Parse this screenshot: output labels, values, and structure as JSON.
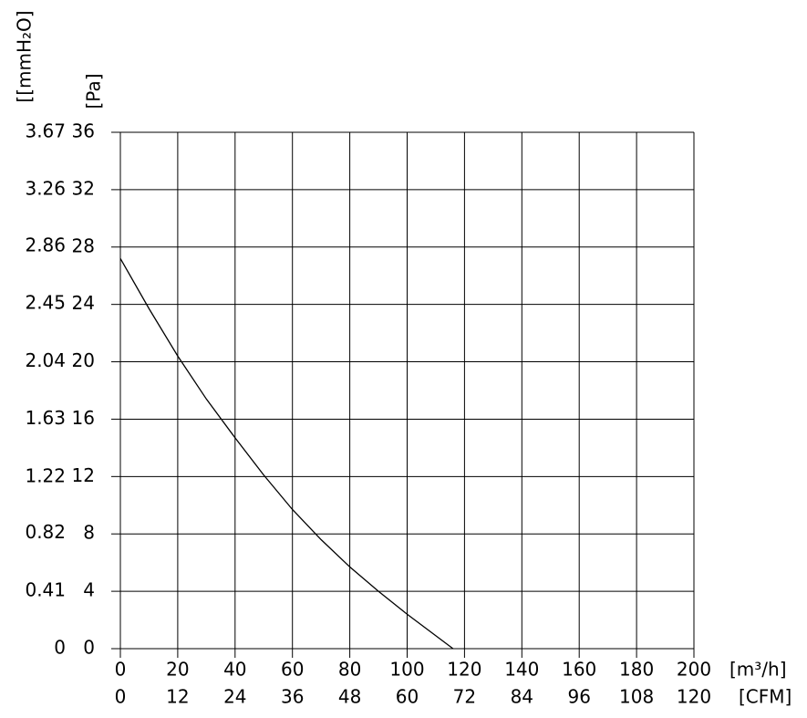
{
  "chart_data": {
    "type": "line",
    "x_label": "[m³/h]",
    "x2_label": "[CFM]",
    "y_label": "[Pa]",
    "y2_label": "[[mmH₂O]",
    "x": [
      0,
      10,
      20,
      30,
      40,
      50,
      60,
      70,
      80,
      90,
      100,
      116
    ],
    "series": [
      {
        "color": "#000000",
        "values": [
          27.2,
          23.7,
          20.4,
          17.4,
          14.7,
          12.1,
          9.7,
          7.6,
          5.7,
          4.0,
          2.4,
          0
        ]
      }
    ],
    "xlim": [
      0,
      200
    ],
    "xticks": [
      0,
      20,
      40,
      60,
      80,
      100,
      120,
      140,
      160,
      180,
      200
    ],
    "x2lim": [
      0,
      120
    ],
    "x2ticks": [
      0,
      12,
      24,
      36,
      48,
      60,
      72,
      84,
      96,
      108,
      120
    ],
    "ylim": [
      0,
      36
    ],
    "yticks": [
      0,
      4,
      8,
      12,
      16,
      20,
      24,
      28,
      32,
      36
    ],
    "y2lim": [
      0,
      3.67
    ],
    "y2ticks": [
      0,
      0.41,
      0.82,
      1.22,
      1.63,
      2.04,
      2.45,
      2.86,
      3.26,
      3.67
    ],
    "grid": true
  }
}
